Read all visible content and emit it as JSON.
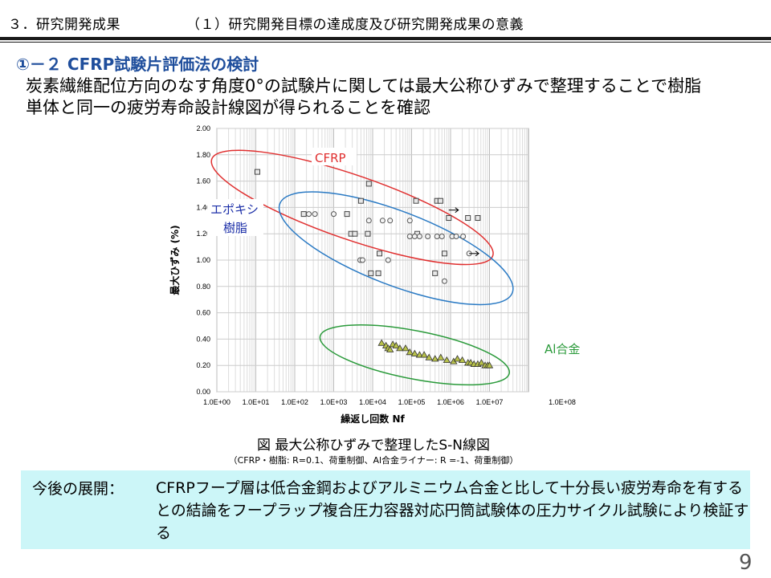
{
  "header": {
    "section": "３．研究開発成果",
    "subtitle": "（１）研究開発目標の達成度及び研究開発成果の意義"
  },
  "heading": "①－２ CFRP試験片評価法の検討",
  "description": "炭素繊維配位方向のなす角度0°の試験片に関しては最大公称ひずみで整理することで樹脂\n単体と同一の疲労寿命設計線図が得られることを確認",
  "chart_data": {
    "type": "scatter",
    "xlabel": "繰返し回数 Nf",
    "ylabel": "最大ひずみ (%)",
    "xscale": "log",
    "xlim": [
      1,
      100000000
    ],
    "ylim": [
      0,
      2.0
    ],
    "yticks": [
      "0.00",
      "0.20",
      "0.40",
      "0.60",
      "0.80",
      "1.00",
      "1.20",
      "1.40",
      "1.60",
      "1.80",
      "2.00"
    ],
    "xticks": [
      "1.0E+00",
      "1.0E+01",
      "1.0E+02",
      "1.0E+03",
      "1.0E+04",
      "1.0E+05",
      "1.0E+06",
      "1.0E+07",
      "1.0E+08"
    ],
    "grid": true,
    "series": [
      {
        "name": "CFRP",
        "marker": "square",
        "color": "#444444",
        "label_color": "#e03030",
        "points": [
          [
            11,
            1.67
          ],
          [
            170,
            1.35
          ],
          [
            2200,
            1.35
          ],
          [
            2800,
            1.2
          ],
          [
            3500,
            1.2
          ],
          [
            5000,
            1.45
          ],
          [
            8000,
            1.58
          ],
          [
            7500,
            1.2
          ],
          [
            9000,
            0.9
          ],
          [
            14000,
            0.9
          ],
          [
            15000,
            1.05
          ],
          [
            130000,
            1.45
          ],
          [
            140000,
            1.2
          ],
          [
            400000,
            0.9
          ],
          [
            450000,
            1.45
          ],
          [
            550000,
            1.45
          ],
          [
            700000,
            1.05
          ],
          [
            900000,
            1.32
          ],
          [
            2800000,
            1.32
          ],
          [
            5000000,
            1.32
          ]
        ],
        "runouts": [
          [
            900000,
            1.38
          ]
        ]
      },
      {
        "name": "エポキシ樹脂",
        "marker": "circle",
        "color": "#555555",
        "label_color": "#1c2fa8",
        "points": [
          [
            230,
            1.35
          ],
          [
            330,
            1.35
          ],
          [
            1000,
            1.35
          ],
          [
            8000,
            1.3
          ],
          [
            18000,
            1.3
          ],
          [
            28000,
            1.3
          ],
          [
            4800,
            1.0
          ],
          [
            5500,
            1.0
          ],
          [
            25000,
            1.0
          ],
          [
            90000,
            1.3
          ],
          [
            90000,
            1.18
          ],
          [
            120000,
            1.18
          ],
          [
            160000,
            1.18
          ],
          [
            260000,
            1.18
          ],
          [
            450000,
            1.18
          ],
          [
            600000,
            1.18
          ],
          [
            700000,
            0.84
          ],
          [
            1100000,
            1.18
          ],
          [
            1400000,
            1.18
          ],
          [
            2100000,
            1.18
          ],
          [
            3000000,
            1.05
          ]
        ],
        "runouts": [
          [
            3000000,
            1.05
          ]
        ]
      },
      {
        "name": "Al合金",
        "marker": "triangle",
        "color": "#8e9a2e",
        "label_color": "#2a9a3a",
        "points": [
          [
            17000,
            0.37
          ],
          [
            22000,
            0.35
          ],
          [
            25000,
            0.33
          ],
          [
            28000,
            0.32
          ],
          [
            33000,
            0.36
          ],
          [
            40000,
            0.35
          ],
          [
            50000,
            0.33
          ],
          [
            70000,
            0.33
          ],
          [
            90000,
            0.3
          ],
          [
            120000,
            0.29
          ],
          [
            160000,
            0.28
          ],
          [
            210000,
            0.28
          ],
          [
            280000,
            0.26
          ],
          [
            400000,
            0.25
          ],
          [
            560000,
            0.26
          ],
          [
            800000,
            0.24
          ],
          [
            1200000,
            0.23
          ],
          [
            1500000,
            0.25
          ],
          [
            2000000,
            0.24
          ],
          [
            2800000,
            0.22
          ],
          [
            3300000,
            0.22
          ],
          [
            4000000,
            0.21
          ],
          [
            5000000,
            0.21
          ],
          [
            6200000,
            0.22
          ],
          [
            7700000,
            0.2
          ],
          [
            9000000,
            0.2
          ],
          [
            10000000,
            0.2
          ]
        ]
      }
    ]
  },
  "caption": {
    "main": "図 最大公称ひずみで整理したS-N線図",
    "sub": "（CFRP・樹脂: R=0.1、荷重制御、Al合金ライナー: R =-1、荷重制御）"
  },
  "next": {
    "label": "今後の展開：",
    "text": "CFRPフープ層は低合金鋼およびアルミニウム合金と比して十分長い疲労寿命を有するとの結論をフープラップ複合圧力容器対応円筒試験体の圧力サイクル試験により検証する"
  },
  "page_number": "9"
}
